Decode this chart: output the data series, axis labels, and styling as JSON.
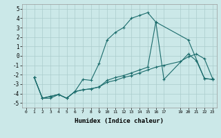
{
  "xlabel": "Humidex (Indice chaleur)",
  "xlim": [
    -0.5,
    23.5
  ],
  "ylim": [
    -5.5,
    5.5
  ],
  "yticks": [
    -5,
    -4,
    -3,
    -2,
    -1,
    0,
    1,
    2,
    3,
    4,
    5
  ],
  "bg_color": "#cbe8e8",
  "grid_color": "#aacccc",
  "line_color": "#1a6b6b",
  "line1_x": [
    1,
    2,
    3,
    4,
    5,
    6,
    7,
    8,
    9,
    10,
    11,
    12,
    13,
    14,
    15,
    16,
    17,
    20,
    21,
    22,
    23
  ],
  "line1_y": [
    -2.3,
    -4.5,
    -4.5,
    -4.1,
    -4.5,
    -3.8,
    -2.5,
    -2.6,
    -0.8,
    1.7,
    2.5,
    3.0,
    4.0,
    4.3,
    4.6,
    3.6,
    -2.5,
    0.2,
    -0.5,
    -2.4,
    -2.5
  ],
  "line2_x": [
    1,
    2,
    3,
    4,
    5,
    6,
    7,
    8,
    9,
    10,
    11,
    12,
    13,
    14,
    15,
    16,
    17,
    19,
    20,
    21,
    22,
    23
  ],
  "line2_y": [
    -2.3,
    -4.5,
    -4.3,
    -4.1,
    -4.5,
    -3.8,
    -3.6,
    -3.5,
    -3.3,
    -2.8,
    -2.6,
    -2.3,
    -2.1,
    -1.8,
    -1.5,
    -1.2,
    -1.0,
    -0.6,
    -0.1,
    0.2,
    -0.3,
    -2.4
  ],
  "line3_x": [
    1,
    2,
    3,
    4,
    5,
    6,
    7,
    8,
    9,
    10,
    11,
    12,
    13,
    14,
    15,
    16,
    20,
    22,
    23
  ],
  "line3_y": [
    -2.3,
    -4.5,
    -4.3,
    -4.1,
    -4.5,
    -3.8,
    -3.6,
    -3.5,
    -3.3,
    -2.6,
    -2.3,
    -2.1,
    -1.8,
    -1.5,
    -1.2,
    3.6,
    1.7,
    -2.4,
    -2.5
  ]
}
